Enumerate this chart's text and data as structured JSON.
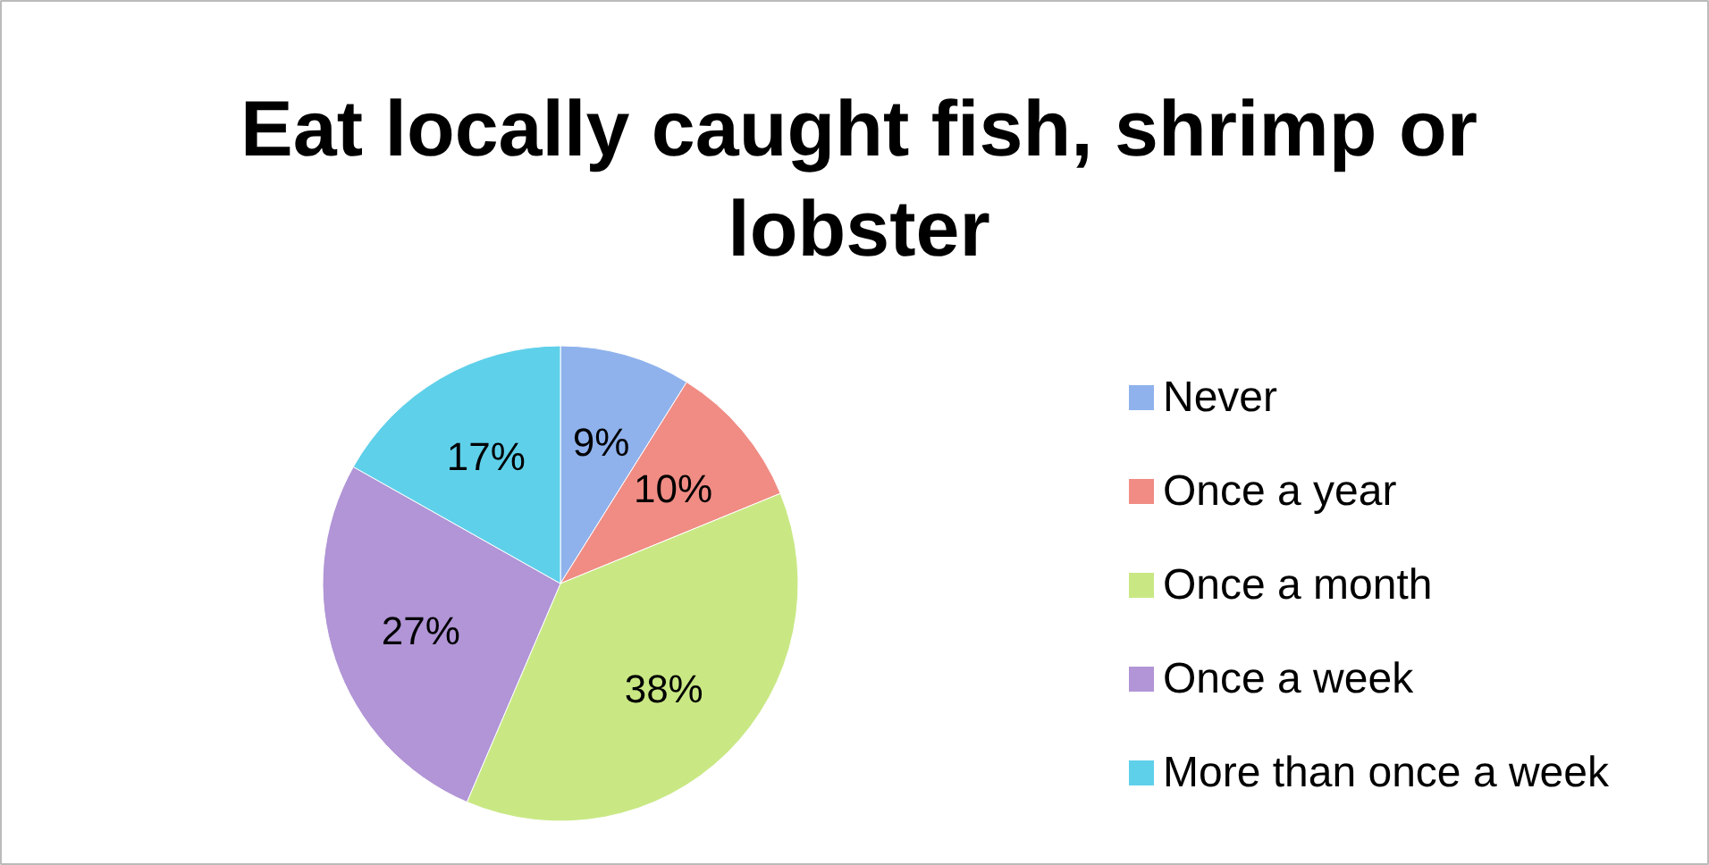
{
  "chart_data": {
    "type": "pie",
    "title": "Eat locally caught fish, shrimp or lobster",
    "categories": [
      "Never",
      "Once a year",
      "Once a month",
      "Once a week",
      "More than once a week"
    ],
    "values": [
      9,
      10,
      38,
      27,
      17
    ],
    "value_labels": [
      "9%",
      "10%",
      "38%",
      "27%",
      "17%"
    ],
    "colors": [
      "#8fb2ec",
      "#f08c84",
      "#c9e884",
      "#b195d6",
      "#5fd0ea"
    ],
    "legend": "right"
  }
}
